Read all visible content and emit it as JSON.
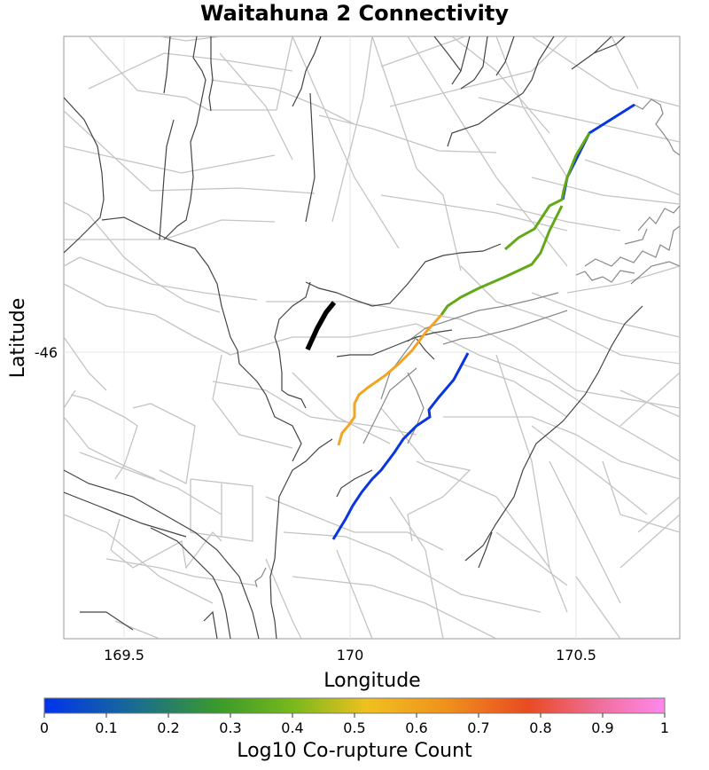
{
  "title": "Waitahuna 2 Connectivity",
  "x_axis": {
    "label": "Longitude",
    "ticks": [
      "169.5",
      "170",
      "170.5"
    ]
  },
  "y_axis": {
    "label": "Latitude",
    "ticks": [
      "-46"
    ]
  },
  "colorbar": {
    "label": "Log10 Co-rupture Count",
    "ticks": [
      "0",
      "0.1",
      "0.2",
      "0.3",
      "0.4",
      "0.5",
      "0.6",
      "0.7",
      "0.8",
      "0.9",
      "1"
    ],
    "min": 0,
    "max": 1,
    "colors": [
      "#0033ee",
      "#1a6e8f",
      "#3a9a2a",
      "#78b81c",
      "#f0c020",
      "#f0901c",
      "#e84a22",
      "#f070a0",
      "#ff88ee"
    ]
  },
  "legend_colors": {
    "target_fault": "#000000",
    "blue_value": "#0a36e0",
    "green_value": "#63a818",
    "orange_value": "#f3a422"
  }
}
